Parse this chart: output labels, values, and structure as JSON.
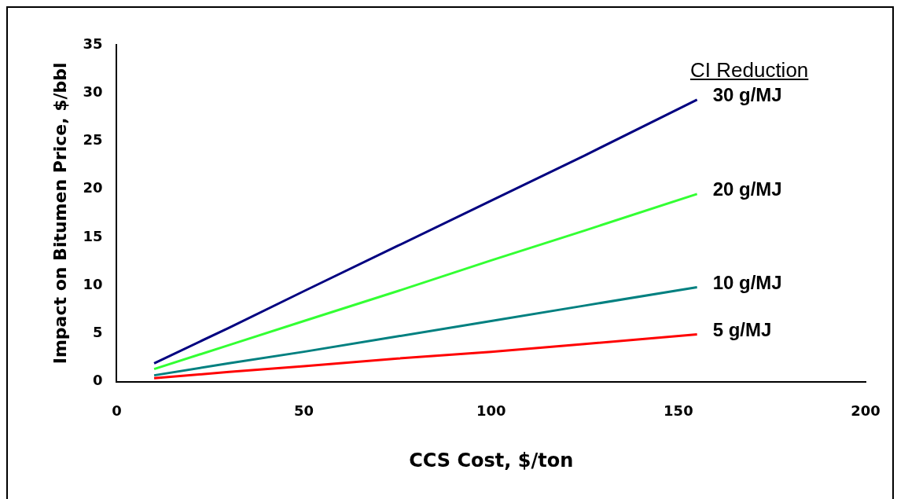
{
  "chart_data": {
    "type": "line",
    "xlabel": "CCS Cost, $/ton",
    "ylabel": "Impact on Bitumen Price, $/bbl",
    "legend_title": "CI Reduction",
    "x": [
      10,
      30,
      50,
      75,
      100,
      125,
      155
    ],
    "series": [
      {
        "name": "30 g/MJ",
        "color": "#000080",
        "values": [
          1.9,
          5.6,
          9.4,
          14.1,
          18.8,
          23.5,
          29.3
        ]
      },
      {
        "name": "20 g/MJ",
        "color": "#33ff33",
        "values": [
          1.3,
          3.8,
          6.3,
          9.4,
          12.6,
          15.7,
          19.5
        ]
      },
      {
        "name": "10 g/MJ",
        "color": "#008080",
        "values": [
          0.65,
          1.9,
          3.1,
          4.7,
          6.3,
          7.9,
          9.8
        ]
      },
      {
        "name": "5 g/MJ",
        "color": "#ff0000",
        "values": [
          0.35,
          1.0,
          1.6,
          2.4,
          3.1,
          3.9,
          4.9
        ]
      }
    ],
    "xlim": [
      0,
      200
    ],
    "xticks": [
      0,
      50,
      100,
      150,
      200
    ],
    "ylim": [
      0,
      35
    ],
    "yticks": [
      0,
      5,
      10,
      15,
      20,
      25,
      30,
      35
    ],
    "grid": false,
    "legend": false,
    "marker": "none",
    "line_style": "solid"
  }
}
